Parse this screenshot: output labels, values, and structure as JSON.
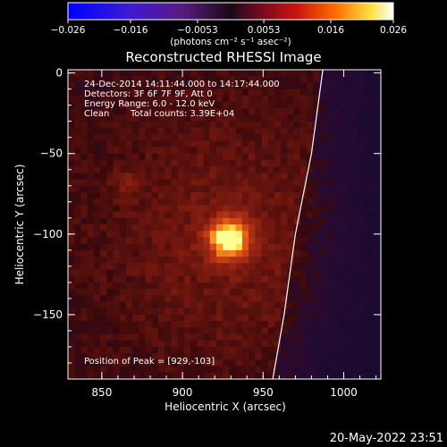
{
  "colorbar": {
    "ticks": [
      "−0.026",
      "−0.016",
      "−0.0053",
      "0.0053",
      "0.016",
      "0.026"
    ],
    "tick_values": [
      -0.026,
      -0.016,
      -0.0053,
      0.0053,
      0.016,
      0.026
    ],
    "range": [
      -0.026,
      0.026
    ],
    "units": "(photons cm⁻² s⁻¹ asec⁻²)"
  },
  "header": {
    "title": "Reconstructed RHESSI Image"
  },
  "annotations": {
    "time": "24-Dec-2014 14:11:44.000 to 14:17:44.000",
    "detectors": "Detectors: 3F 6F 7F 9F, Att 0",
    "energy": "Energy Range: 6.0 - 12.0 keV",
    "clean_label": "Clean",
    "counts": "Total counts: 3.39E+04",
    "peak": "Position of Peak = [929,-103]"
  },
  "footer": {
    "date": "20-May-2022 23:51"
  },
  "chart_data": {
    "type": "heatmap",
    "title": "Reconstructed RHESSI Image",
    "xlabel": "Heliocentric X (arcsec)",
    "ylabel": "Heliocentric Y (arcsec)",
    "xlim": [
      829,
      1023
    ],
    "ylim": [
      -190,
      2
    ],
    "x_ticks": [
      850,
      900,
      950,
      1000
    ],
    "y_ticks": [
      0,
      -50,
      -100,
      -150
    ],
    "x_tick_labels": [
      "850",
      "900",
      "950",
      "1000"
    ],
    "y_tick_labels": [
      "0",
      "−50",
      "−100",
      "−150"
    ],
    "peak": [
      929,
      -103
    ],
    "secondary_source": [
      866,
      -68
    ],
    "limb_x_at_y": [
      [
        987,
        2
      ],
      [
        980,
        -50
      ],
      [
        970,
        -100
      ],
      [
        963,
        -150
      ],
      [
        956,
        -190
      ]
    ],
    "colors": {
      "background": "#000000",
      "low": "#1e0a3c",
      "mid": "#a52a16",
      "high": "#ffff60"
    }
  }
}
